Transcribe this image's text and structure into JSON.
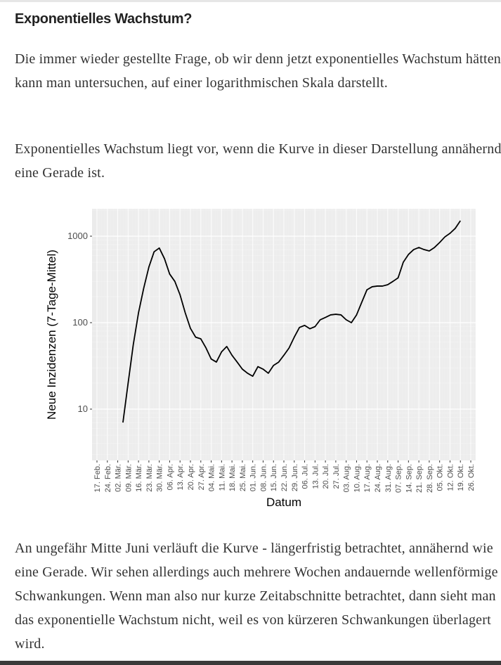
{
  "heading": "Exponentielles Wachstum?",
  "paragraphs": [
    "Die immer wieder gestellte Frage, ob wir denn jetzt exponentielles Wachstum hätten, kann man untersuchen, auf einer logarithmischen Skala darstellt.",
    "Exponentielles Wachstum liegt vor, wenn die Kurve in dieser Darstellung annähernd eine Gerade ist.",
    "An ungefähr Mitte Juni verläuft die Kurve - längerfristig betrachtet, annähernd wie eine Gerade. Wir sehen allerdings auch mehrere Wochen andauernde wellenförmige Schwankungen. Wenn man also nur kurze Zeitabschnitte betrachtet, dann sieht man das exponentielle Wachstum nicht, weil es von kürzeren Schwankungen überlagert wird."
  ],
  "chart_data": {
    "type": "line",
    "x_label": "Datum",
    "y_label": "Neue Inzidenzen (7-Tage-Mittel)",
    "categories": [
      "17. Feb.",
      null,
      "24. Feb.",
      null,
      "02. Mär.",
      null,
      "09. Mär.",
      null,
      "16. Mär.",
      null,
      "23. Mär.",
      null,
      "30. Mär.",
      null,
      "06. Apr.",
      null,
      "13. Apr.",
      null,
      "20. Apr.",
      null,
      "27. Apr.",
      null,
      "04. Mai.",
      null,
      "11. Mai.",
      null,
      "18. Mai.",
      null,
      "25. Mai.",
      null,
      "01. Jun.",
      null,
      "08. Jun.",
      null,
      "15. Jun.",
      null,
      "22. Jun.",
      null,
      "29. Jun.",
      null,
      "06. Jul.",
      null,
      "13. Jul.",
      null,
      "20. Jul.",
      null,
      "27. Jul.",
      null,
      "03. Aug.",
      null,
      "10. Aug.",
      null,
      "17. Aug.",
      null,
      "24. Aug.",
      null,
      "31. Aug.",
      null,
      "07. Sep.",
      null,
      "14. Sep.",
      null,
      "21. Sep.",
      null,
      "28. Sep.",
      null,
      "05. Okt.",
      null,
      "12. Okt.",
      null,
      "19. Okt.",
      null,
      "26. Okt."
    ],
    "values": [
      null,
      null,
      null,
      null,
      null,
      7,
      20,
      56,
      130,
      250,
      440,
      660,
      730,
      550,
      365,
      300,
      210,
      130,
      86,
      68,
      65,
      51,
      38,
      35,
      46,
      53,
      42,
      35,
      29,
      26,
      24,
      31,
      29,
      26,
      32,
      35,
      42,
      51,
      68,
      88,
      93,
      85,
      90,
      108,
      115,
      123,
      125,
      123,
      108,
      100,
      123,
      172,
      240,
      260,
      265,
      265,
      275,
      300,
      330,
      500,
      615,
      700,
      740,
      700,
      675,
      740,
      845,
      980,
      1080,
      1230,
      1510,
      null,
      null
    ],
    "color": "#000000",
    "log_y": true,
    "ylim": [
      2.55,
      2075
    ],
    "yticks": [
      10,
      100,
      1000
    ],
    "grid": true
  }
}
